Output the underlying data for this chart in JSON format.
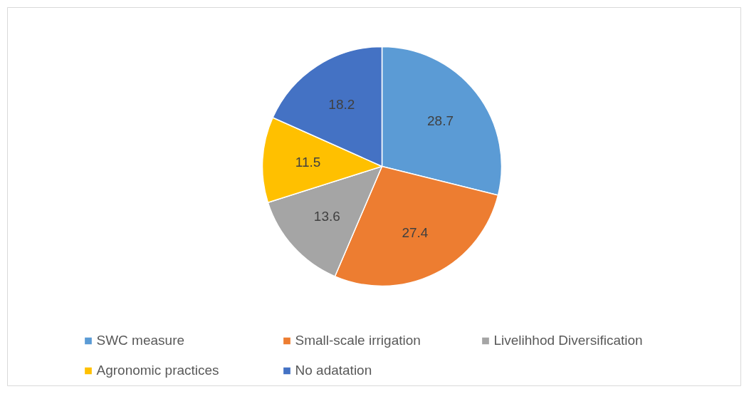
{
  "chart_data": {
    "type": "pie",
    "categories": [
      "SWC measure",
      "Small-scale irrigation",
      "Livelihhod Diversification",
      "Agronomic practices",
      "No adatation"
    ],
    "values": [
      28.7,
      27.4,
      13.6,
      11.5,
      18.2
    ],
    "colors": [
      "#5b9bd5",
      "#ed7d31",
      "#a5a5a5",
      "#ffc000",
      "#4472c4"
    ],
    "data_labels": true,
    "legend": "bottom"
  }
}
